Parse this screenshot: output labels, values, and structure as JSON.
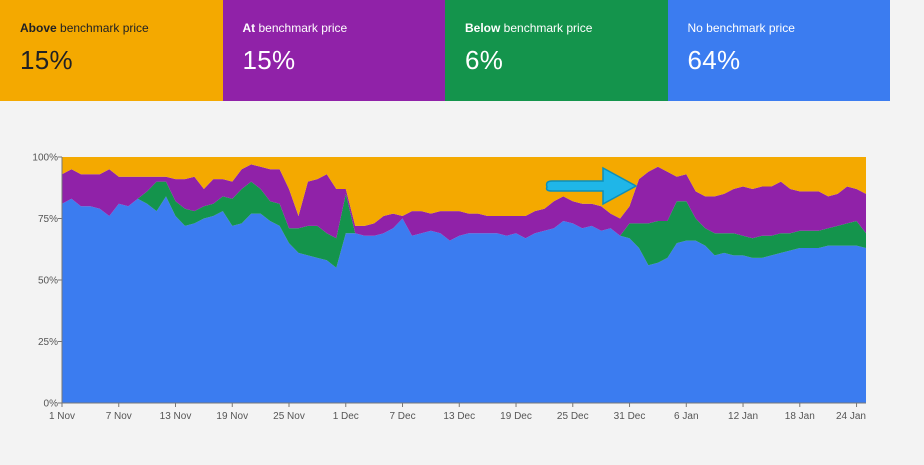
{
  "cards": [
    {
      "bold": "Above",
      "rest": " benchmark price",
      "value": "15%",
      "color": "#f4a900",
      "text": "dark"
    },
    {
      "bold": "At",
      "rest": " benchmark price",
      "value": "15%",
      "color": "#9022a8",
      "text": "light"
    },
    {
      "bold": "Below",
      "rest": " benchmark price",
      "value": "6%",
      "color": "#14944c",
      "text": "light"
    },
    {
      "bold": "",
      "rest": "No benchmark price",
      "value": "64%",
      "color": "#3b7cf0",
      "text": "light"
    }
  ],
  "chart_data": {
    "type": "area",
    "stacked": true,
    "y_ticks": [
      "0%",
      "25%",
      "50%",
      "75%",
      "100%"
    ],
    "ylim": [
      0,
      100
    ],
    "x_tick_labels": [
      "1 Nov",
      "7 Nov",
      "13 Nov",
      "19 Nov",
      "25 Nov",
      "1 Dec",
      "7 Dec",
      "13 Dec",
      "19 Dec",
      "25 Dec",
      "31 Dec",
      "6 Jan",
      "12 Jan",
      "18 Jan",
      "24 Jan"
    ],
    "x_tick_index": [
      0,
      6,
      12,
      18,
      24,
      30,
      36,
      42,
      48,
      54,
      60,
      66,
      72,
      78,
      84
    ],
    "x_count": 86,
    "series": [
      {
        "name": "No benchmark price",
        "color": "#3b7cf0",
        "values": [
          81,
          83,
          80,
          80,
          79,
          76,
          81,
          80,
          83,
          81,
          78,
          84,
          76,
          72,
          73,
          75,
          76,
          78,
          72,
          73,
          77,
          77,
          74,
          72,
          65,
          61,
          60,
          59,
          58,
          55,
          69,
          69,
          68,
          68,
          69,
          71,
          75,
          68,
          69,
          70,
          69,
          66,
          68,
          69,
          69,
          69,
          69,
          68,
          69,
          67,
          69,
          70,
          71,
          74,
          73,
          71,
          72,
          70,
          71,
          68,
          67,
          63,
          56,
          57,
          59,
          65,
          66,
          66,
          64,
          60,
          61,
          60,
          60,
          59,
          59,
          60,
          61,
          62,
          63,
          63,
          63,
          64,
          64,
          64,
          64,
          63
        ]
      },
      {
        "name": "Below benchmark price",
        "color": "#14944c",
        "values": [
          0,
          0,
          0,
          0,
          0,
          0,
          0,
          0,
          0,
          5,
          12,
          6,
          6,
          7,
          5,
          5,
          5,
          6,
          11,
          14,
          13,
          10,
          8,
          9,
          6,
          10,
          12,
          13,
          11,
          12,
          16,
          0,
          0,
          0,
          0,
          0,
          0,
          0,
          0,
          0,
          0,
          0,
          0,
          0,
          0,
          0,
          0,
          0,
          0,
          0,
          0,
          0,
          0,
          0,
          0,
          0,
          0,
          0,
          0,
          0,
          6,
          10,
          17,
          17,
          15,
          17,
          16,
          9,
          7,
          9,
          8,
          9,
          8,
          8,
          9,
          8,
          8,
          7,
          7,
          7,
          7,
          7,
          8,
          9,
          10,
          6
        ]
      },
      {
        "name": "At benchmark price",
        "color": "#9022a8",
        "values": [
          12,
          12,
          13,
          13,
          14,
          19,
          11,
          12,
          9,
          6,
          2,
          2,
          9,
          12,
          14,
          7,
          10,
          7,
          7,
          8,
          7,
          9,
          13,
          14,
          16,
          5,
          18,
          19,
          24,
          20,
          2,
          3,
          4,
          5,
          7,
          6,
          1,
          10,
          9,
          7,
          9,
          12,
          10,
          8,
          8,
          7,
          7,
          8,
          7,
          9,
          9,
          9,
          11,
          10,
          9,
          10,
          9,
          10,
          6,
          7,
          7,
          18,
          21,
          22,
          20,
          10,
          11,
          11,
          13,
          15,
          16,
          18,
          20,
          20,
          20,
          20,
          21,
          18,
          16,
          16,
          16,
          13,
          13,
          15,
          13,
          16
        ]
      },
      {
        "name": "Above benchmark price",
        "color": "#f4a900",
        "values": [
          7,
          5,
          7,
          7,
          7,
          5,
          8,
          8,
          8,
          8,
          8,
          8,
          9,
          9,
          8,
          13,
          9,
          9,
          10,
          5,
          3,
          4,
          5,
          5,
          13,
          24,
          10,
          9,
          7,
          13,
          13,
          28,
          28,
          27,
          24,
          23,
          24,
          22,
          22,
          23,
          22,
          22,
          22,
          23,
          23,
          24,
          24,
          24,
          24,
          24,
          22,
          21,
          18,
          16,
          18,
          19,
          19,
          20,
          23,
          25,
          20,
          9,
          6,
          4,
          6,
          8,
          7,
          14,
          16,
          16,
          15,
          13,
          12,
          13,
          12,
          12,
          10,
          13,
          14,
          14,
          14,
          16,
          15,
          12,
          13,
          15
        ]
      }
    ]
  }
}
